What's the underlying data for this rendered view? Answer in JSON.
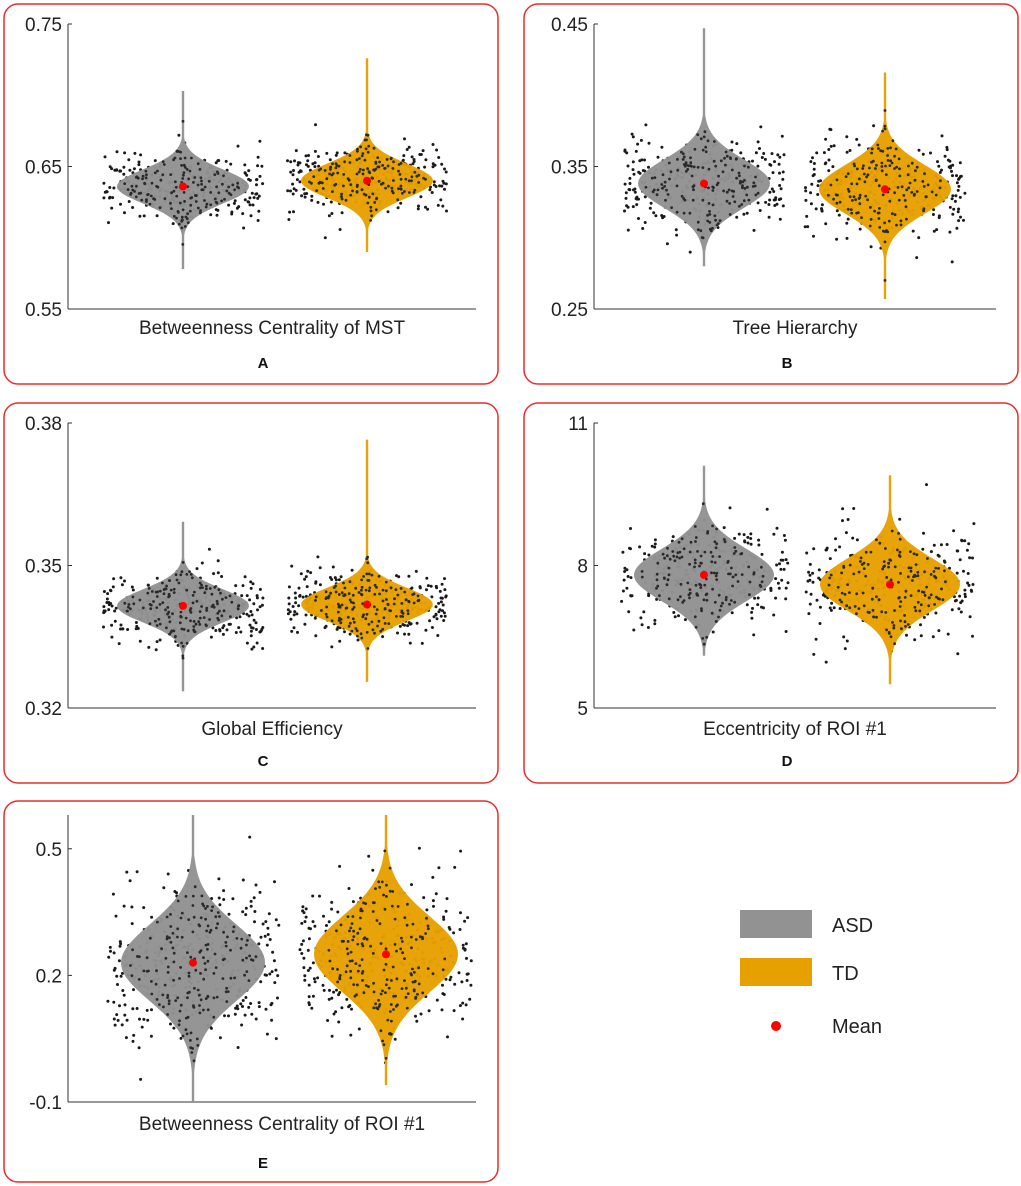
{
  "colors": {
    "asd": "#929292",
    "td": "#E6A000",
    "mean": "#FF0000",
    "frame": "#E0302E",
    "dots": "#1A1A1A"
  },
  "legend": {
    "asd": "ASD",
    "td": "TD",
    "mean": "Mean"
  },
  "chart_data": [
    {
      "type": "violin",
      "panel": "A",
      "xlabel": "Betweenness Centrality of MST",
      "ylim": [
        0.55,
        0.75
      ],
      "yticks": [
        {
          "v": 0.55,
          "label": "0.55"
        },
        {
          "v": 0.65,
          "label": "0.65"
        },
        {
          "v": 0.75,
          "label": "0.75"
        }
      ],
      "series": [
        {
          "name": "ASD",
          "mean": 0.636,
          "sd": 0.012,
          "min": 0.578,
          "max": 0.703,
          "n": 250
        },
        {
          "name": "TD",
          "mean": 0.64,
          "sd": 0.012,
          "min": 0.59,
          "max": 0.726,
          "n": 250
        }
      ]
    },
    {
      "type": "violin",
      "panel": "B",
      "xlabel": "Tree Hierarchy",
      "ylim": [
        0.25,
        0.45
      ],
      "yticks": [
        {
          "v": 0.25,
          "label": "0.25"
        },
        {
          "v": 0.35,
          "label": "0.35"
        },
        {
          "v": 0.45,
          "label": "0.45"
        }
      ],
      "series": [
        {
          "name": "ASD",
          "mean": 0.338,
          "sd": 0.017,
          "min": 0.28,
          "max": 0.447,
          "n": 250
        },
        {
          "name": "TD",
          "mean": 0.334,
          "sd": 0.017,
          "min": 0.257,
          "max": 0.416,
          "n": 250
        }
      ]
    },
    {
      "type": "violin",
      "panel": "C",
      "xlabel": "Global Efficiency",
      "ylim": [
        0.32,
        0.38
      ],
      "yticks": [
        {
          "v": 0.32,
          "label": "0.32"
        },
        {
          "v": 0.35,
          "label": "0.35"
        },
        {
          "v": 0.38,
          "label": "0.38"
        }
      ],
      "series": [
        {
          "name": "ASD",
          "mean": 0.3415,
          "sd": 0.0035,
          "min": 0.3235,
          "max": 0.3592,
          "n": 250
        },
        {
          "name": "TD",
          "mean": 0.3418,
          "sd": 0.0035,
          "min": 0.3255,
          "max": 0.3765,
          "n": 250
        }
      ]
    },
    {
      "type": "violin",
      "panel": "D",
      "xlabel": "Eccentricity of ROI #1",
      "ylim": [
        5,
        11
      ],
      "yticks": [
        {
          "v": 5,
          "label": "5"
        },
        {
          "v": 8,
          "label": "8"
        },
        {
          "v": 11,
          "label": "11"
        }
      ],
      "series": [
        {
          "name": "ASD",
          "mean": 7.8,
          "sd": 0.55,
          "min": 6.1,
          "max": 10.1,
          "n": 250
        },
        {
          "name": "TD",
          "mean": 7.6,
          "sd": 0.55,
          "min": 5.5,
          "max": 9.9,
          "n": 250
        }
      ]
    },
    {
      "type": "violin",
      "panel": "E",
      "xlabel": "Betweenness Centrality of ROI #1",
      "ylim": [
        -0.1,
        0.58
      ],
      "yticks": [
        {
          "v": -0.1,
          "label": "-0.1"
        },
        {
          "v": 0.2,
          "label": "0.2"
        },
        {
          "v": 0.5,
          "label": "0.5"
        }
      ],
      "series": [
        {
          "name": "ASD",
          "mean": 0.23,
          "sd": 0.09,
          "min": -0.1,
          "max": 0.58,
          "n": 300
        },
        {
          "name": "TD",
          "mean": 0.25,
          "sd": 0.09,
          "min": -0.06,
          "max": 0.58,
          "n": 300
        }
      ]
    }
  ]
}
